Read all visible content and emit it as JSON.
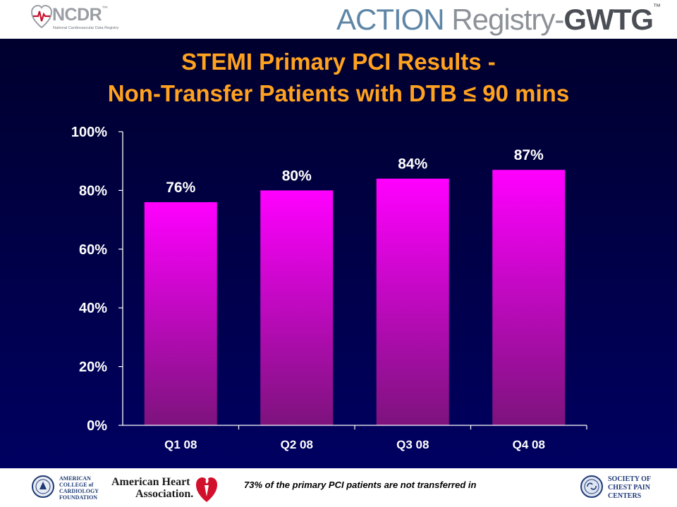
{
  "header": {
    "ncdr_wordmark": "NCDR",
    "ncdr_tm": "™",
    "ncdr_subtitle": "National Cardiovascular Data Registry",
    "action_word": "ACTION",
    "registry_word": "Registry",
    "gwtg_word": "GWTG",
    "action_tm": "™"
  },
  "slide": {
    "title_line_1": "STEMI Primary PCI Results -",
    "title_line_2": "Non-Transfer Patients with DTB ≤ 90 mins"
  },
  "colors": {
    "background_top": "#00002e",
    "background_bottom": "#000061",
    "title": "#ffa21f",
    "bar_top": "#ff00ff",
    "bar_bottom": "#7d137d",
    "text": "#ffffff"
  },
  "chart_data": {
    "type": "bar",
    "title": "STEMI Primary PCI Results - Non-Transfer Patients with DTB ≤ 90 mins",
    "categories": [
      "Q1 08",
      "Q2 08",
      "Q3 08",
      "Q4 08"
    ],
    "values": [
      76,
      80,
      84,
      87
    ],
    "value_labels": [
      "76%",
      "80%",
      "84%",
      "87%"
    ],
    "ylim": [
      0,
      100
    ],
    "yticks": [
      0,
      20,
      40,
      60,
      80,
      100
    ],
    "ytick_labels": [
      "0%",
      "20%",
      "40%",
      "60%",
      "80%",
      "100%"
    ],
    "xlabel": "",
    "ylabel": "",
    "grid": false,
    "legend": "none"
  },
  "footer": {
    "acc_text": [
      "AMERICAN",
      "COLLEGE of",
      "CARDIOLOGY",
      "FOUNDATION"
    ],
    "aha_text": [
      "American Heart",
      "Association."
    ],
    "note": "73% of the primary PCI patients are not transferred in",
    "scpc_text": [
      "SOCIETY OF",
      "CHEST PAIN",
      "CENTERS"
    ]
  }
}
